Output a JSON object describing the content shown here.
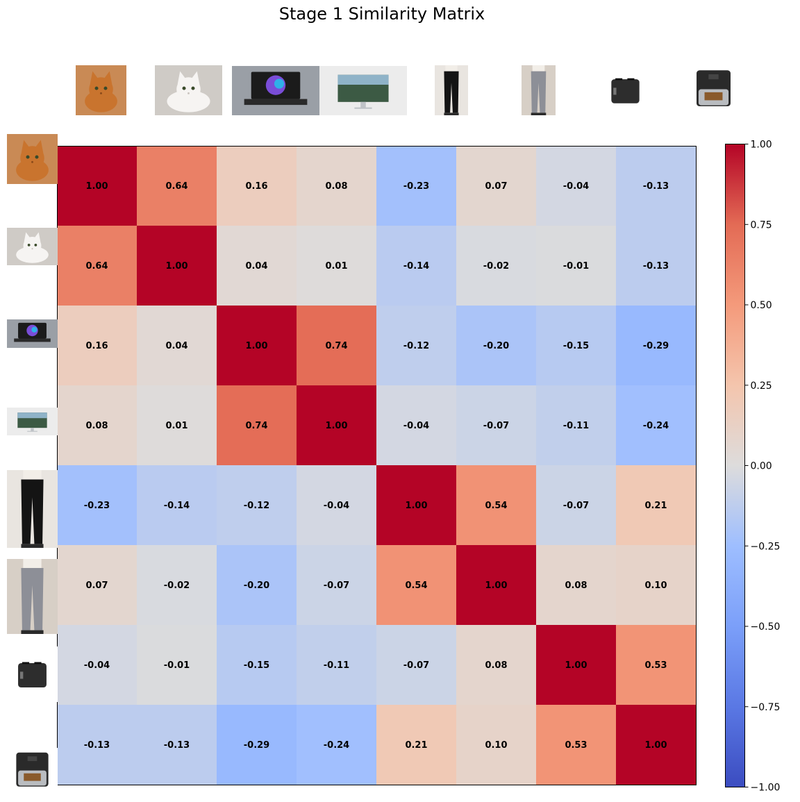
{
  "chart_data": {
    "type": "heatmap",
    "title": "Stage 1 Similarity Matrix",
    "items": [
      {
        "icon": "orange-cat-thumbnail",
        "bg": "#c98a55"
      },
      {
        "icon": "white-cat-thumbnail",
        "bg": "#cfcbc6"
      },
      {
        "icon": "laptop-thumbnail",
        "bg": "#9a9fa6"
      },
      {
        "icon": "monitor-thumbnail",
        "bg": "#ececec"
      },
      {
        "icon": "black-pants-thumbnail",
        "bg": "#e9e5e0"
      },
      {
        "icon": "grey-pants-thumbnail",
        "bg": "#d7cfc6"
      },
      {
        "icon": "toaster-thumbnail",
        "bg": "#ffffff"
      },
      {
        "icon": "air-fryer-thumbnail",
        "bg": "#ffffff"
      }
    ],
    "matrix": [
      [
        1.0,
        0.64,
        0.16,
        0.08,
        -0.23,
        0.07,
        -0.04,
        -0.13
      ],
      [
        0.64,
        1.0,
        0.04,
        0.01,
        -0.14,
        -0.02,
        -0.01,
        -0.13
      ],
      [
        0.16,
        0.04,
        1.0,
        0.74,
        -0.12,
        -0.2,
        -0.15,
        -0.29
      ],
      [
        0.08,
        0.01,
        0.74,
        1.0,
        -0.04,
        -0.07,
        -0.11,
        -0.24
      ],
      [
        -0.23,
        -0.14,
        -0.12,
        -0.04,
        1.0,
        0.54,
        -0.07,
        0.21
      ],
      [
        0.07,
        -0.02,
        -0.2,
        -0.07,
        0.54,
        1.0,
        0.08,
        0.1
      ],
      [
        -0.04,
        -0.01,
        -0.15,
        -0.11,
        -0.07,
        0.08,
        1.0,
        0.53
      ],
      [
        -0.13,
        -0.13,
        -0.29,
        -0.24,
        0.21,
        0.1,
        0.53,
        1.0
      ]
    ],
    "value_format_decimals": 2,
    "colormap": "coolwarm",
    "vmin": -1.0,
    "vmax": 1.0,
    "colorbar_ticks": [
      1.0,
      0.75,
      0.5,
      0.25,
      0.0,
      -0.25,
      -0.5,
      -0.75,
      -1.0
    ],
    "colorbar_tick_labels": [
      "1.00",
      "0.75",
      "0.50",
      "0.25",
      "0.00",
      "−0.25",
      "−0.50",
      "−0.75",
      "−1.00"
    ],
    "grid": false,
    "colors": {
      "min": "#3b4cc0",
      "mid": "#dddcdc",
      "max": "#b40426"
    }
  }
}
